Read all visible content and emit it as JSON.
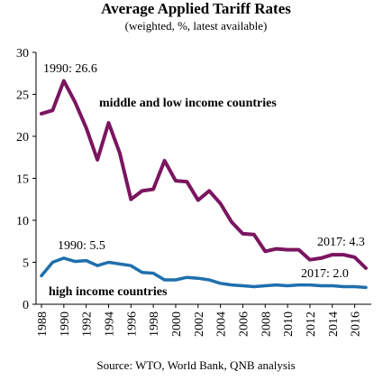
{
  "title": "Average Applied Tariff Rates",
  "subtitle": "(weighted, %, latest available)",
  "source": "Source: WTO, World Bank, QNB analysis",
  "chart_data": {
    "type": "line",
    "x": [
      1988,
      1989,
      1990,
      1991,
      1992,
      1993,
      1994,
      1995,
      1996,
      1997,
      1998,
      1999,
      2000,
      2001,
      2002,
      2003,
      2004,
      2005,
      2006,
      2007,
      2008,
      2009,
      2010,
      2011,
      2012,
      2013,
      2014,
      2015,
      2016,
      2017
    ],
    "ylim": [
      0,
      30
    ],
    "yticks": [
      0,
      5,
      10,
      15,
      20,
      25,
      30
    ],
    "xticks": [
      1988,
      1990,
      1992,
      1994,
      1996,
      1998,
      2000,
      2002,
      2004,
      2006,
      2008,
      2010,
      2012,
      2014,
      2016
    ],
    "grid": false,
    "series": [
      {
        "name": "middle and low income countries",
        "color": "#7b1560",
        "values": [
          22.7,
          23.1,
          26.6,
          24.1,
          21.0,
          17.2,
          21.6,
          18.0,
          12.5,
          13.5,
          13.7,
          17.1,
          14.7,
          14.6,
          12.4,
          13.5,
          12.0,
          9.8,
          8.4,
          8.3,
          6.3,
          6.6,
          6.5,
          6.5,
          5.3,
          5.5,
          5.9,
          5.9,
          5.6,
          4.3
        ]
      },
      {
        "name": "high income countries",
        "color": "#1f6fad",
        "values": [
          3.4,
          5.0,
          5.5,
          5.1,
          5.2,
          4.6,
          5.0,
          4.8,
          4.6,
          3.8,
          3.7,
          2.9,
          2.9,
          3.2,
          3.1,
          2.9,
          2.5,
          2.3,
          2.2,
          2.1,
          2.2,
          2.3,
          2.2,
          2.3,
          2.3,
          2.2,
          2.2,
          2.1,
          2.1,
          2.0
        ]
      }
    ],
    "annotations": [
      "1990: 26.6",
      "1990: 5.5",
      "2017: 4.3",
      "2017: 2.0"
    ]
  }
}
